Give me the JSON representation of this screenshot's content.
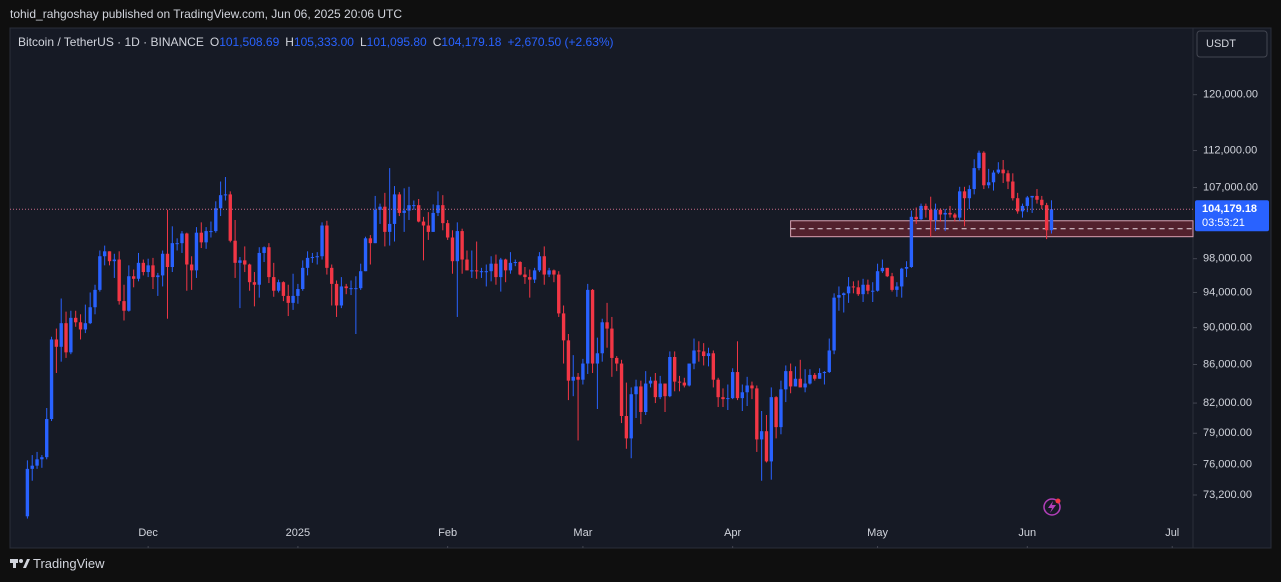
{
  "chart_data": {
    "type": "candlestick",
    "publisher_line": "tohid_rahgoshay published on TradingView.com, Jun 06, 2025 20:06 UTC",
    "symbol": "Bitcoin / TetherUS · 1D · BINANCE",
    "legend_values": [
      {
        "label": "O",
        "value": "101,508.69"
      },
      {
        "label": "H",
        "value": "105,333.00"
      },
      {
        "label": "L",
        "value": "101,095.80"
      },
      {
        "label": "C",
        "value": "104,179.18"
      }
    ],
    "change": "+2,670.50 (+2.63%)",
    "currency": "USDT",
    "last_price_label": "104,179.18",
    "countdown": "03:53:21",
    "brand": "TradingView",
    "up_color": "#2962ff",
    "down_color": "#f23645",
    "log_scale": true,
    "grid": false,
    "ylim": [
      70800,
      130300
    ],
    "yticks": [
      {
        "value": 120000,
        "label": "120,000.00"
      },
      {
        "value": 112000,
        "label": "112,000.00"
      },
      {
        "value": 107000,
        "label": "107,000.00"
      },
      {
        "value": 98000,
        "label": "98,000.00"
      },
      {
        "value": 94000,
        "label": "94,000.00"
      },
      {
        "value": 90000,
        "label": "90,000.00"
      },
      {
        "value": 86000,
        "label": "86,000.00"
      },
      {
        "value": 82000,
        "label": "82,000.00"
      },
      {
        "value": 79000,
        "label": "79,000.00"
      },
      {
        "value": 76000,
        "label": "76,000.00"
      },
      {
        "value": 73200,
        "label": "73,200.00"
      }
    ],
    "xlim": [
      -3.6,
      241.3
    ],
    "xticks": [
      {
        "value": 25,
        "label": "Dec"
      },
      {
        "value": 56,
        "label": "2025"
      },
      {
        "value": 87,
        "label": "Feb"
      },
      {
        "value": 115,
        "label": "Mar"
      },
      {
        "value": 146,
        "label": "Apr"
      },
      {
        "value": 176,
        "label": "May"
      },
      {
        "value": 207,
        "label": "Jun"
      },
      {
        "value": 237,
        "label": "Jul"
      }
    ],
    "zone": {
      "top": 102700,
      "bottom": 100700,
      "start": 158
    },
    "ohlc": [
      [
        71300,
        76400,
        71100,
        75600
      ],
      [
        75600,
        76900,
        74500,
        75900
      ],
      [
        75900,
        77200,
        75600,
        76500
      ],
      [
        76500,
        76900,
        75700,
        76700
      ],
      [
        76700,
        81500,
        76500,
        80400
      ],
      [
        80400,
        89000,
        80200,
        88700
      ],
      [
        88700,
        89900,
        85100,
        87900
      ],
      [
        87900,
        93300,
        86300,
        90500
      ],
      [
        90500,
        91800,
        86700,
        87300
      ],
      [
        87300,
        91900,
        87100,
        91100
      ],
      [
        91100,
        91900,
        90100,
        90600
      ],
      [
        90600,
        91500,
        88700,
        89800
      ],
      [
        89800,
        92600,
        89400,
        90500
      ],
      [
        90500,
        94000,
        90400,
        92300
      ],
      [
        92300,
        94900,
        91500,
        94300
      ],
      [
        94300,
        99000,
        94100,
        98300
      ],
      [
        98300,
        99600,
        97200,
        98900
      ],
      [
        98900,
        98900,
        97200,
        97700
      ],
      [
        97700,
        98600,
        95700,
        97900
      ],
      [
        97900,
        98900,
        92600,
        93000
      ],
      [
        93000,
        94900,
        90800,
        91900
      ],
      [
        91900,
        97200,
        91800,
        95900
      ],
      [
        95900,
        96700,
        94600,
        95600
      ],
      [
        95600,
        98700,
        95300,
        97500
      ],
      [
        97500,
        97900,
        96000,
        96400
      ],
      [
        96400,
        98000,
        95800,
        97200
      ],
      [
        97200,
        98100,
        94400,
        95800
      ],
      [
        95800,
        96300,
        93600,
        96000
      ],
      [
        96000,
        99000,
        94700,
        98600
      ],
      [
        98600,
        104100,
        91000,
        97000
      ],
      [
        97000,
        102000,
        96400,
        99900
      ],
      [
        99900,
        100500,
        99000,
        99900
      ],
      [
        99900,
        101400,
        98700,
        101100
      ],
      [
        101100,
        101200,
        94200,
        97300
      ],
      [
        97300,
        98300,
        94300,
        96600
      ],
      [
        96600,
        101900,
        95700,
        101200
      ],
      [
        101200,
        102500,
        99300,
        100000
      ],
      [
        100000,
        101900,
        99200,
        101400
      ],
      [
        101400,
        102600,
        100600,
        101400
      ],
      [
        101400,
        105200,
        101200,
        104300
      ],
      [
        104300,
        107800,
        103300,
        106000
      ],
      [
        106000,
        108400,
        105300,
        106100
      ],
      [
        106100,
        106500,
        100000,
        100200
      ],
      [
        100200,
        102800,
        95700,
        97500
      ],
      [
        97500,
        98200,
        92200,
        97800
      ],
      [
        97800,
        99500,
        96400,
        97300
      ],
      [
        97300,
        97400,
        94200,
        95200
      ],
      [
        95200,
        96400,
        92400,
        94900
      ],
      [
        94900,
        99400,
        93400,
        98700
      ],
      [
        98700,
        99500,
        97600,
        99400
      ],
      [
        99400,
        99900,
        95100,
        95800
      ],
      [
        95800,
        97500,
        93500,
        94200
      ],
      [
        94200,
        95500,
        94000,
        95200
      ],
      [
        95200,
        95300,
        93000,
        93600
      ],
      [
        93600,
        94900,
        91300,
        92800
      ],
      [
        92800,
        96200,
        92000,
        93600
      ],
      [
        93600,
        95000,
        92700,
        94400
      ],
      [
        94400,
        97800,
        94200,
        96900
      ],
      [
        96900,
        98900,
        96000,
        98100
      ],
      [
        98100,
        98700,
        97500,
        98200
      ],
      [
        98200,
        98800,
        97300,
        98300
      ],
      [
        98300,
        102500,
        97900,
        102100
      ],
      [
        102100,
        102700,
        96100,
        96900
      ],
      [
        96900,
        97300,
        92500,
        95000
      ],
      [
        95000,
        95400,
        91200,
        92500
      ],
      [
        92500,
        95800,
        92200,
        94700
      ],
      [
        94700,
        95000,
        93800,
        94500
      ],
      [
        94500,
        95400,
        93700,
        94500
      ],
      [
        94500,
        95900,
        89300,
        94500
      ],
      [
        94500,
        97400,
        94300,
        96500
      ],
      [
        96500,
        100700,
        96500,
        100500
      ],
      [
        100500,
        100900,
        97300,
        99900
      ],
      [
        99900,
        105900,
        99900,
        104100
      ],
      [
        104100,
        104900,
        102300,
        104500
      ],
      [
        104500,
        106300,
        99500,
        101300
      ],
      [
        101300,
        109600,
        99600,
        102300
      ],
      [
        102300,
        107200,
        100100,
        106100
      ],
      [
        106100,
        106400,
        103300,
        103700
      ],
      [
        103700,
        106900,
        101300,
        104000
      ],
      [
        104000,
        107100,
        102800,
        104700
      ],
      [
        104700,
        105300,
        104100,
        104700
      ],
      [
        104700,
        105500,
        102500,
        102600
      ],
      [
        102600,
        103200,
        97800,
        102100
      ],
      [
        102100,
        103800,
        100300,
        101300
      ],
      [
        101300,
        104800,
        101300,
        103700
      ],
      [
        103700,
        106500,
        103300,
        104700
      ],
      [
        104700,
        106000,
        101500,
        102400
      ],
      [
        102400,
        102800,
        100300,
        100600
      ],
      [
        100600,
        101500,
        96200,
        97700
      ],
      [
        97700,
        102500,
        91200,
        101400
      ],
      [
        101400,
        101700,
        96200,
        97900
      ],
      [
        97900,
        99000,
        96600,
        96600
      ],
      [
        96600,
        99000,
        95700,
        96600
      ],
      [
        96600,
        100100,
        95600,
        96500
      ],
      [
        96500,
        96900,
        95700,
        96500
      ],
      [
        96500,
        97300,
        94700,
        96500
      ],
      [
        96500,
        98300,
        95300,
        97400
      ],
      [
        97400,
        98500,
        94900,
        95800
      ],
      [
        95800,
        98100,
        94100,
        97900
      ],
      [
        97900,
        98000,
        95200,
        96600
      ],
      [
        96600,
        98800,
        96200,
        97500
      ],
      [
        97500,
        97900,
        97100,
        97600
      ],
      [
        97600,
        97700,
        96000,
        96100
      ],
      [
        96100,
        97000,
        95000,
        95800
      ],
      [
        95800,
        96700,
        93400,
        95500
      ],
      [
        95500,
        96900,
        95100,
        96600
      ],
      [
        96600,
        98800,
        96400,
        98300
      ],
      [
        98300,
        99500,
        94900,
        96100
      ],
      [
        96100,
        96900,
        95800,
        96600
      ],
      [
        96600,
        96700,
        95200,
        96100
      ],
      [
        96100,
        96500,
        91200,
        91600
      ],
      [
        91600,
        92500,
        86100,
        88600
      ],
      [
        88600,
        89300,
        82300,
        84300
      ],
      [
        84300,
        87000,
        82700,
        84700
      ],
      [
        84700,
        85100,
        78300,
        84400
      ],
      [
        84400,
        86600,
        83900,
        86100
      ],
      [
        86100,
        95000,
        85000,
        94300
      ],
      [
        94300,
        94400,
        85100,
        86100
      ],
      [
        86100,
        88900,
        81400,
        87200
      ],
      [
        87200,
        91000,
        86300,
        90600
      ],
      [
        90600,
        92800,
        87800,
        89900
      ],
      [
        89900,
        91200,
        84700,
        86700
      ],
      [
        86700,
        86900,
        85300,
        86100
      ],
      [
        86100,
        86500,
        80000,
        80700
      ],
      [
        80700,
        84100,
        77500,
        78500
      ],
      [
        78500,
        83600,
        76600,
        82900
      ],
      [
        82900,
        84400,
        80500,
        83700
      ],
      [
        83700,
        84300,
        79900,
        81100
      ],
      [
        81100,
        85300,
        80800,
        84000
      ],
      [
        84000,
        84700,
        83600,
        84300
      ],
      [
        84300,
        85100,
        82000,
        82600
      ],
      [
        82600,
        84800,
        82400,
        84000
      ],
      [
        84000,
        84000,
        81100,
        82700
      ],
      [
        82700,
        87400,
        82600,
        86800
      ],
      [
        86800,
        87400,
        83200,
        84200
      ],
      [
        84200,
        84800,
        83200,
        84100
      ],
      [
        84100,
        84600,
        83600,
        83800
      ],
      [
        83800,
        86100,
        83700,
        86100
      ],
      [
        86100,
        88800,
        85500,
        87500
      ],
      [
        87500,
        88500,
        86300,
        87400
      ],
      [
        87400,
        88300,
        85900,
        86900
      ],
      [
        86900,
        87800,
        85800,
        87200
      ],
      [
        87200,
        87500,
        83600,
        84400
      ],
      [
        84400,
        84600,
        81600,
        82600
      ],
      [
        82600,
        83500,
        81600,
        82400
      ],
      [
        82400,
        83900,
        81300,
        82500
      ],
      [
        82500,
        85600,
        82400,
        85200
      ],
      [
        85200,
        88500,
        82300,
        82500
      ],
      [
        82500,
        83900,
        81200,
        83100
      ],
      [
        83100,
        84700,
        81700,
        83800
      ],
      [
        83800,
        84200,
        82400,
        83500
      ],
      [
        83500,
        83800,
        77200,
        78400
      ],
      [
        78400,
        81200,
        74500,
        79200
      ],
      [
        79200,
        80800,
        76200,
        76300
      ],
      [
        76300,
        83600,
        74600,
        82600
      ],
      [
        82600,
        82700,
        78500,
        79600
      ],
      [
        79600,
        84300,
        78900,
        83400
      ],
      [
        83400,
        85900,
        82100,
        85300
      ],
      [
        85300,
        86100,
        83000,
        83700
      ],
      [
        83700,
        85800,
        83700,
        84500
      ],
      [
        84500,
        86500,
        83600,
        83600
      ],
      [
        83600,
        85500,
        83100,
        84000
      ],
      [
        84000,
        85500,
        83900,
        84900
      ],
      [
        84900,
        85100,
        84300,
        84500
      ],
      [
        84500,
        85600,
        84500,
        85100
      ],
      [
        85100,
        85300,
        83900,
        85200
      ],
      [
        85200,
        88800,
        85100,
        87500
      ],
      [
        87500,
        93900,
        87100,
        93400
      ],
      [
        93400,
        94700,
        91900,
        93700
      ],
      [
        93700,
        94000,
        91700,
        93900
      ],
      [
        93900,
        95800,
        92800,
        94700
      ],
      [
        94700,
        95300,
        93900,
        94600
      ],
      [
        94600,
        95400,
        93600,
        93800
      ],
      [
        93800,
        95600,
        92900,
        94900
      ],
      [
        94900,
        95500,
        93800,
        94200
      ],
      [
        94200,
        95200,
        92900,
        94200
      ],
      [
        94200,
        97400,
        94100,
        96500
      ],
      [
        96500,
        97900,
        96300,
        96900
      ],
      [
        96900,
        96900,
        95800,
        95900
      ],
      [
        95900,
        96300,
        94100,
        94300
      ],
      [
        94300,
        95200,
        93500,
        94700
      ],
      [
        94700,
        96900,
        93400,
        96800
      ],
      [
        96800,
        97700,
        95800,
        97000
      ],
      [
        97000,
        104000,
        96900,
        103200
      ],
      [
        103200,
        104400,
        102300,
        102900
      ],
      [
        102900,
        104900,
        102800,
        104600
      ],
      [
        104600,
        104900,
        103100,
        104100
      ],
      [
        104100,
        105800,
        100700,
        102800
      ],
      [
        102800,
        104900,
        101400,
        104100
      ],
      [
        104100,
        104300,
        102600,
        103500
      ],
      [
        103500,
        104200,
        101400,
        103700
      ],
      [
        103700,
        104600,
        103100,
        103500
      ],
      [
        103500,
        103700,
        102600,
        103100
      ],
      [
        103100,
        107100,
        102700,
        106500
      ],
      [
        106500,
        107100,
        102000,
        105600
      ],
      [
        105600,
        107300,
        104200,
        106800
      ],
      [
        106800,
        110800,
        106100,
        109600
      ],
      [
        109600,
        112000,
        109300,
        111700
      ],
      [
        111700,
        111900,
        106800,
        107300
      ],
      [
        107300,
        109500,
        106900,
        107700
      ],
      [
        107700,
        109300,
        106600,
        109000
      ],
      [
        109000,
        110400,
        108800,
        109400
      ],
      [
        109400,
        110700,
        107600,
        108900
      ],
      [
        108900,
        109300,
        106800,
        107800
      ],
      [
        107800,
        108900,
        105300,
        105600
      ],
      [
        105600,
        106300,
        103600,
        103900
      ],
      [
        103900,
        104900,
        103100,
        104600
      ],
      [
        104600,
        105900,
        103800,
        105700
      ],
      [
        105700,
        105900,
        103700,
        105900
      ],
      [
        105900,
        106800,
        104900,
        105400
      ],
      [
        105400,
        105900,
        104200,
        104700
      ],
      [
        104700,
        105000,
        100400,
        101508.69
      ],
      [
        101508.69,
        105333.0,
        101095.8,
        104179.18
      ]
    ]
  }
}
